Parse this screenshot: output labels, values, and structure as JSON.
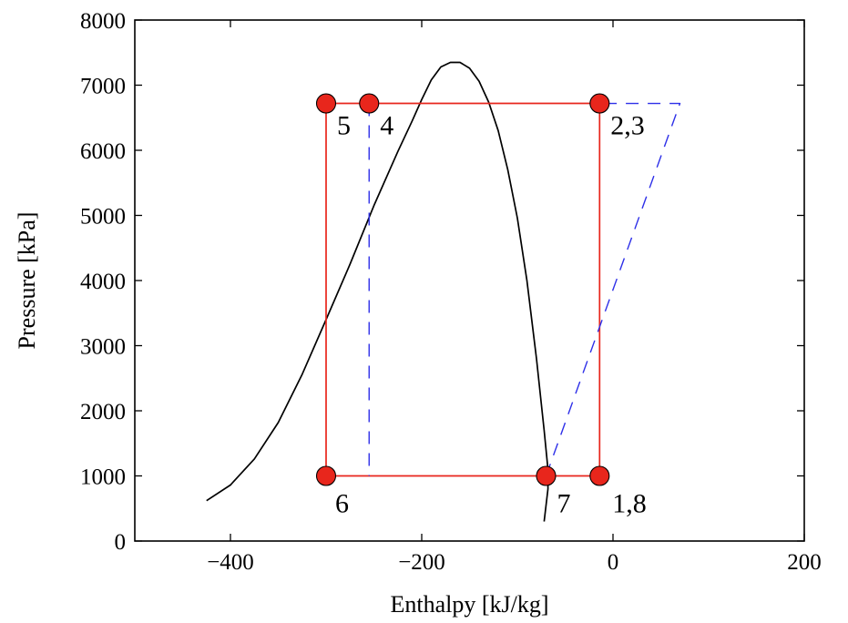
{
  "chart_data": {
    "type": "line",
    "title": "",
    "xlabel": "Enthalpy [kJ/kg]",
    "ylabel": "Pressure [kPa]",
    "xlim": [
      -500,
      200
    ],
    "ylim": [
      0,
      8000
    ],
    "xticks": [
      -400,
      -200,
      0,
      200
    ],
    "xtick_labels": [
      "−400",
      "−200",
      "0",
      "200"
    ],
    "yticks": [
      0,
      1000,
      2000,
      3000,
      4000,
      5000,
      6000,
      7000,
      8000
    ],
    "ytick_labels": [
      "0",
      "1000",
      "2000",
      "3000",
      "4000",
      "5000",
      "6000",
      "7000",
      "8000"
    ],
    "grid": false,
    "series": [
      {
        "style": "solid",
        "color": "#000000",
        "x": [
          -425,
          -400,
          -375,
          -350,
          -325,
          -300,
          -275,
          -250,
          -225,
          -210,
          -200,
          -190,
          -180,
          -170,
          -160,
          -150,
          -140,
          -130,
          -120,
          -110,
          -100,
          -90,
          -80,
          -72,
          -68,
          -68,
          -70,
          -72
        ],
        "y": [
          620,
          860,
          1260,
          1820,
          2560,
          3400,
          4250,
          5150,
          5980,
          6450,
          6780,
          7080,
          7280,
          7350,
          7350,
          7260,
          7060,
          6740,
          6300,
          5700,
          4960,
          4000,
          2800,
          1700,
          1100,
          800,
          550,
          300
        ]
      },
      {
        "style": "solid",
        "color": "#e8261c",
        "x": [
          -300,
          -255,
          -14,
          -14,
          -70,
          -300,
          -300
        ],
        "y": [
          6720,
          6720,
          6720,
          1000,
          1000,
          1000,
          6720
        ]
      },
      {
        "style": "dashed",
        "color": "#2d2fe8",
        "x": [
          -255,
          -255
        ],
        "y": [
          6720,
          1000
        ]
      },
      {
        "style": "dashed",
        "color": "#2d2fe8",
        "x": [
          -70,
          70,
          -14
        ],
        "y": [
          1000,
          6720,
          6720
        ]
      }
    ],
    "points": [
      {
        "label": "5",
        "x": -300,
        "y": 6720
      },
      {
        "label": "4",
        "x": -255,
        "y": 6720
      },
      {
        "label": "2,3",
        "x": -14,
        "y": 6720
      },
      {
        "label": "6",
        "x": -300,
        "y": 1000
      },
      {
        "label": "7",
        "x": -70,
        "y": 1000
      },
      {
        "label": "1,8",
        "x": -14,
        "y": 1000
      }
    ],
    "point_color": "#e8261c"
  }
}
